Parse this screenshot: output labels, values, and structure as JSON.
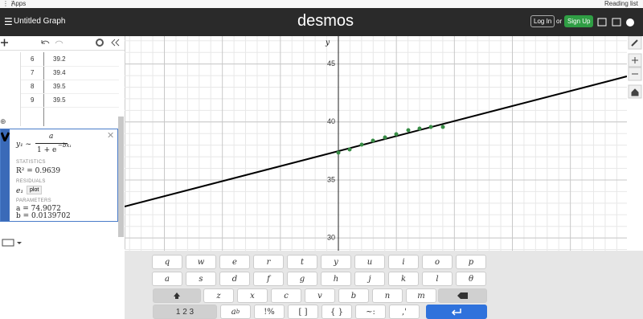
{
  "browser": {
    "apps": "Apps",
    "reading_list": "Reading list"
  },
  "header": {
    "title": "Untitled Graph",
    "logo": "desmos",
    "login": "Log In",
    "or": "or",
    "signup": "Sign Up"
  },
  "table": {
    "rows": [
      [
        6,
        39.2
      ],
      [
        7,
        39.4
      ],
      [
        8,
        39.5
      ],
      [
        9,
        39.5
      ]
    ]
  },
  "expression": {
    "lhs": "y₁ ~",
    "numerator": "a",
    "denominator": "1 + e",
    "exponent": "−bx₁",
    "statistics": "STATISTICS",
    "r_squared": "R² = 0.9639",
    "residuals": "RESIDUALS",
    "residual_var": "e₁",
    "plot": "plot",
    "parameters": "PARAMETERS",
    "params": [
      "a = 74.9072",
      "b = 0.0139702"
    ]
  },
  "graph": {
    "axis_label": "y",
    "ylim": [
      28.9,
      47.4
    ],
    "yticks": [
      30,
      35,
      40,
      45
    ]
  },
  "keyboard": {
    "row1": [
      "q",
      "w",
      "e",
      "r",
      "t",
      "y",
      "u",
      "i",
      "o",
      "p"
    ],
    "row2": [
      "a",
      "s",
      "d",
      "f",
      "g",
      "h",
      "j",
      "k",
      "l",
      "θ"
    ],
    "row3": [
      "z",
      "x",
      "c",
      "v",
      "b",
      "n",
      "m"
    ],
    "numbers": "1 2 3",
    "sub_key": {
      "base": "a",
      "sub": "b"
    },
    "row4": [
      "!%",
      "[ ]",
      "{ }",
      "~:",
      ",'"
    ]
  }
}
